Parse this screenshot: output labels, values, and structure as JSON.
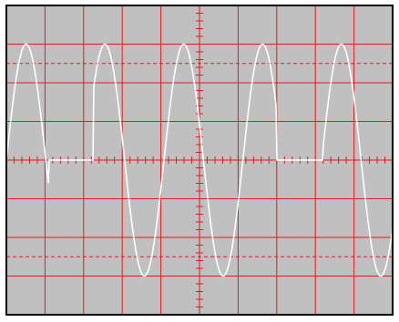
{
  "scope": {
    "screen_color": "#c0c0c0",
    "grid_color": "#e8171d",
    "trace_color": "#ffffff",
    "border_color": "#000000",
    "background_color": "#ffffff",
    "graticule": {
      "horizontal_divisions": 10,
      "vertical_divisions": 8,
      "minor_ticks_per_division": 5
    },
    "cursors": {
      "style": "dashed",
      "upper_level": 2.5,
      "lower_level": -2.5
    },
    "waveform": {
      "shape": "sine",
      "cycles_visible": 4.9,
      "amplitude_divisions": 3.0,
      "segments": [
        {
          "from_div": 0.0,
          "to_div": 1.1,
          "state": "signal"
        },
        {
          "from_div": 1.1,
          "to_div": 2.25,
          "state": "zero"
        },
        {
          "from_div": 2.25,
          "to_div": 7.0,
          "state": "signal"
        },
        {
          "from_div": 7.0,
          "to_div": 8.2,
          "state": "zero"
        },
        {
          "from_div": 8.2,
          "to_div": 10.0,
          "state": "signal"
        }
      ]
    }
  }
}
